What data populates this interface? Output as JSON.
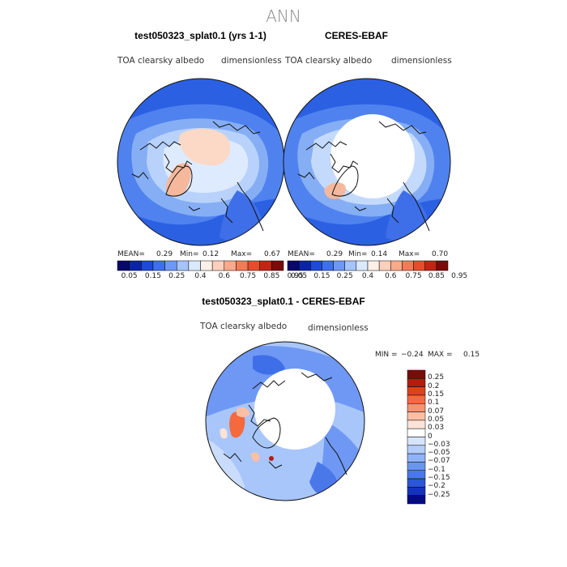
{
  "page_title": "ANN",
  "panels": [
    {
      "title": "test050323_splat0.1 (yrs 1-1)",
      "field_label": "TOA clearsky albedo",
      "units": "dimensionless",
      "stats": {
        "mean_label": "MEAN=",
        "mean": "0.29",
        "min_label": "Min=",
        "min": "0.12",
        "max_label": "Max=",
        "max": "0.67"
      }
    },
    {
      "title": "CERES-EBAF",
      "field_label": "TOA clearsky albedo",
      "units": "dimensionless",
      "stats": {
        "mean_label": "MEAN=",
        "mean": "0.29",
        "min_label": "Min=",
        "min": "0.14",
        "max_label": "Max=",
        "max": "0.70"
      }
    }
  ],
  "top_colorbar": {
    "colors": [
      "#08086b",
      "#0b23a8",
      "#1f49d8",
      "#3e6fee",
      "#6f97f5",
      "#a6c4fa",
      "#dbe9fe",
      "#fdf0e8",
      "#fcd0bd",
      "#f9a98c",
      "#f37a57",
      "#e64d2d",
      "#c22514",
      "#7d0a0a"
    ],
    "tick_labels": [
      "0.05",
      "0.15",
      "0.25",
      "0.4",
      "0.6",
      "0.75",
      "0.85",
      "0.95"
    ]
  },
  "diff_panel": {
    "title": "test050323_splat0.1 - CERES-EBAF",
    "field_label": "TOA clearsky albedo",
    "units": "dimensionless",
    "stats": {
      "min_label": "MIN =",
      "min": "−0.24",
      "max_label": "MAX =",
      "max": "0.15"
    }
  },
  "diff_colorbar": {
    "colors": [
      "#7d0a0a",
      "#b81a10",
      "#e2401f",
      "#f4693d",
      "#f79272",
      "#fbbfa6",
      "#fde3d6",
      "#ffffff",
      "#d6e4fc",
      "#b4cdf9",
      "#8fb3f6",
      "#6a96f1",
      "#4a78e9",
      "#2b56d8",
      "#1433bd",
      "#050b83"
    ],
    "tick_labels": [
      "0.25",
      "0.2",
      "0.15",
      "0.1",
      "0.07",
      "0.05",
      "0.03",
      "0",
      "−0.03",
      "−0.05",
      "−0.07",
      "−0.1",
      "−0.15",
      "−0.2",
      "−0.25"
    ]
  },
  "chart_data": [
    {
      "type": "heatmap",
      "title": "test050323_splat0.1 (yrs 1-1)",
      "projection": "north polar stereographic",
      "variable": "TOA clearsky albedo",
      "units": "dimensionless",
      "mean": 0.29,
      "min": 0.12,
      "max": 0.67,
      "levels": [
        0.05,
        0.15,
        0.25,
        0.4,
        0.6,
        0.75,
        0.85,
        0.95
      ]
    },
    {
      "type": "heatmap",
      "title": "CERES-EBAF",
      "projection": "north polar stereographic",
      "variable": "TOA clearsky albedo",
      "units": "dimensionless",
      "mean": 0.29,
      "min": 0.14,
      "max": 0.7,
      "levels": [
        0.05,
        0.15,
        0.25,
        0.4,
        0.6,
        0.75,
        0.85,
        0.95
      ]
    },
    {
      "type": "heatmap",
      "title": "test050323_splat0.1 - CERES-EBAF",
      "projection": "north polar stereographic",
      "variable": "TOA clearsky albedo",
      "units": "dimensionless",
      "min": -0.24,
      "max": 0.15,
      "levels": [
        0.25,
        0.2,
        0.15,
        0.1,
        0.07,
        0.05,
        0.03,
        0,
        -0.03,
        -0.05,
        -0.07,
        -0.1,
        -0.15,
        -0.2,
        -0.25
      ]
    }
  ]
}
